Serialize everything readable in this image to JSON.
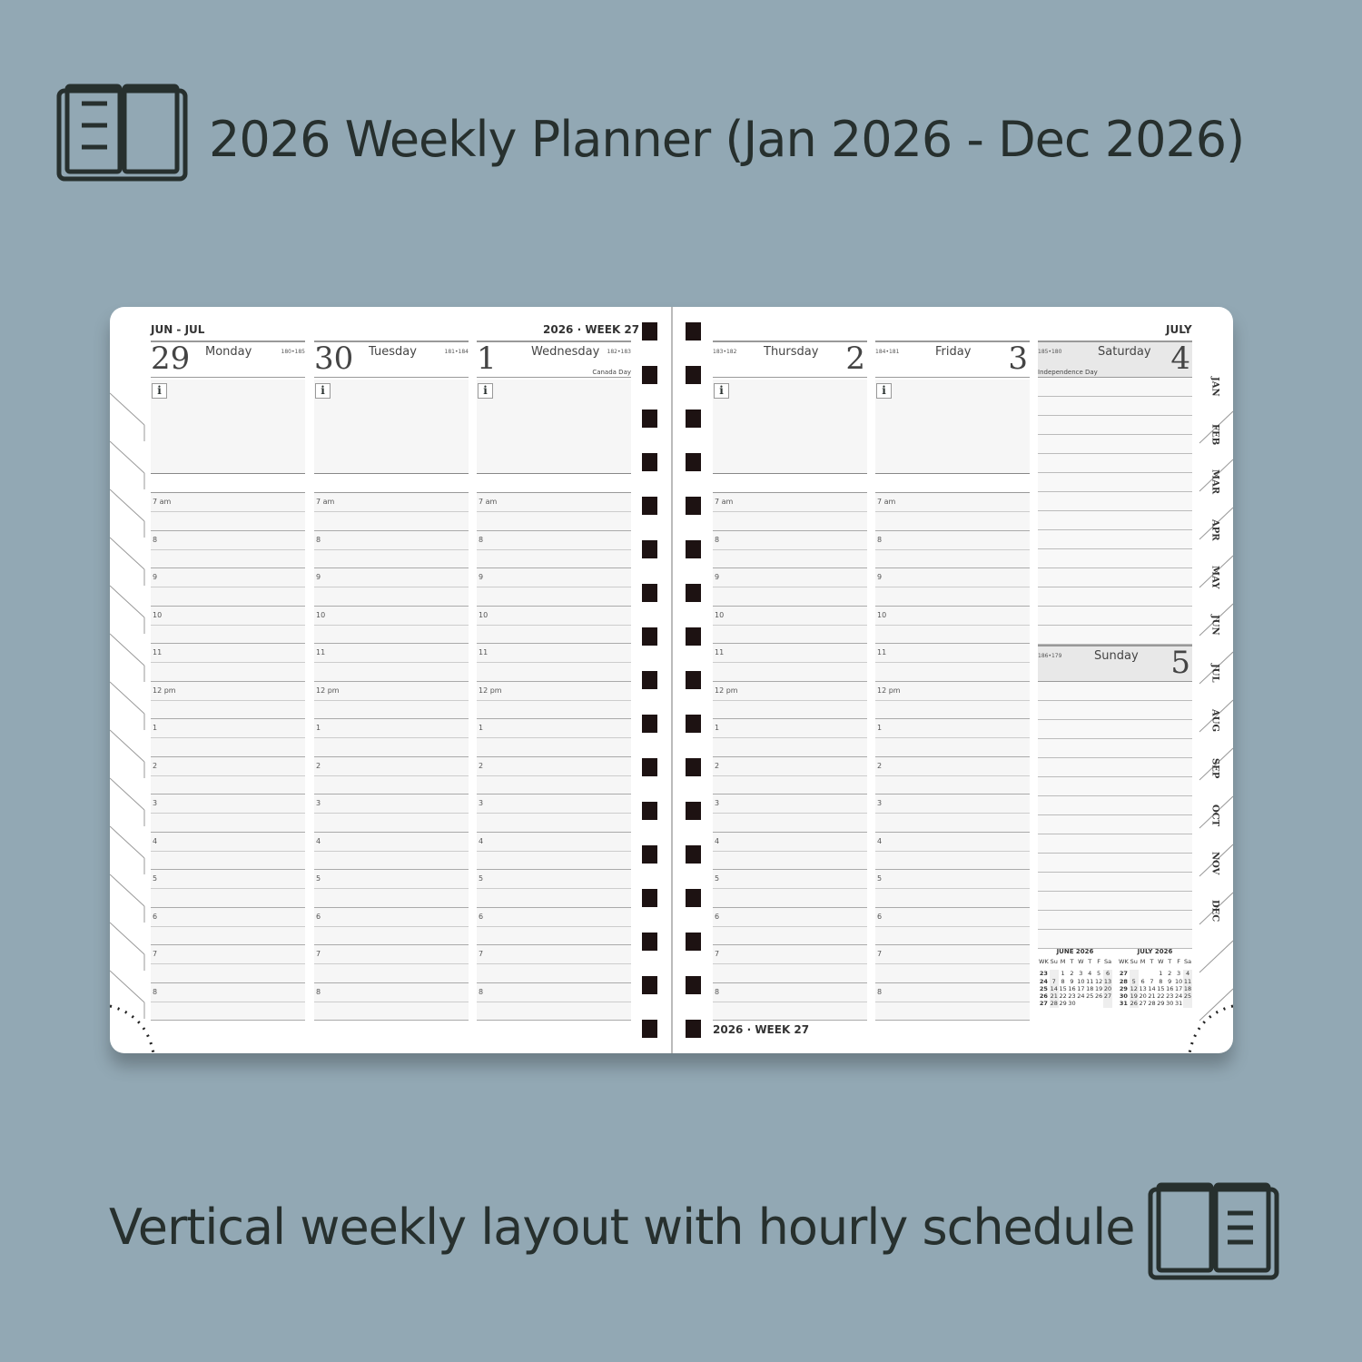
{
  "title": "2026 Weekly Planner (Jan 2026 - Dec 2026)",
  "subtitle": "Vertical weekly layout with hourly schedule",
  "colors": {
    "background": "#92a8b4",
    "text": "#27302e",
    "rings": "#1d1212"
  },
  "planner": {
    "left_header": "JUN - JUL",
    "left_week": "2026 · WEEK 27",
    "right_month": "JULY",
    "footer_week": "2026 · WEEK 27",
    "hours": [
      "7 am",
      "8",
      "9",
      "10",
      "11",
      "12 pm",
      "1",
      "2",
      "3",
      "4",
      "5",
      "6",
      "7",
      "8"
    ],
    "info_icon": "i",
    "days": [
      {
        "num": "29",
        "name": "Monday",
        "count": "180•185",
        "holiday": ""
      },
      {
        "num": "30",
        "name": "Tuesday",
        "count": "181•184",
        "holiday": ""
      },
      {
        "num": "1",
        "name": "Wednesday",
        "count": "182•183",
        "holiday": "Canada Day"
      },
      {
        "num": "2",
        "name": "Thursday",
        "count": "183•182",
        "holiday": ""
      },
      {
        "num": "3",
        "name": "Friday",
        "count": "184•181",
        "holiday": ""
      },
      {
        "num": "4",
        "name": "Saturday",
        "count": "185•180",
        "holiday": "Independence Day"
      },
      {
        "num": "5",
        "name": "Sunday",
        "count": "186•179",
        "holiday": ""
      }
    ],
    "month_tabs": [
      "JAN",
      "FEB",
      "MAR",
      "APR",
      "MAY",
      "JUN",
      "JUL",
      "AUG",
      "SEP",
      "OCT",
      "NOV",
      "DEC"
    ],
    "mini_calendars": [
      {
        "title": "JUNE  2026",
        "head": [
          "WK",
          "Su",
          "M",
          "T",
          "W",
          "T",
          "F",
          "Sa"
        ],
        "rows": [
          [
            "23",
            "",
            "1",
            "2",
            "3",
            "4",
            "5",
            "6"
          ],
          [
            "24",
            "7",
            "8",
            "9",
            "10",
            "11",
            "12",
            "13"
          ],
          [
            "25",
            "14",
            "15",
            "16",
            "17",
            "18",
            "19",
            "20"
          ],
          [
            "26",
            "21",
            "22",
            "23",
            "24",
            "25",
            "26",
            "27"
          ],
          [
            "27",
            "28",
            "29",
            "30",
            "",
            "",
            "",
            ""
          ]
        ]
      },
      {
        "title": "JULY  2026",
        "head": [
          "WK",
          "Su",
          "M",
          "T",
          "W",
          "T",
          "F",
          "Sa"
        ],
        "rows": [
          [
            "27",
            "",
            "",
            "",
            "1",
            "2",
            "3",
            "4"
          ],
          [
            "28",
            "5",
            "6",
            "7",
            "8",
            "9",
            "10",
            "11"
          ],
          [
            "29",
            "12",
            "13",
            "14",
            "15",
            "16",
            "17",
            "18"
          ],
          [
            "30",
            "19",
            "20",
            "21",
            "22",
            "23",
            "24",
            "25"
          ],
          [
            "31",
            "26",
            "27",
            "28",
            "29",
            "30",
            "31",
            ""
          ]
        ]
      }
    ]
  }
}
